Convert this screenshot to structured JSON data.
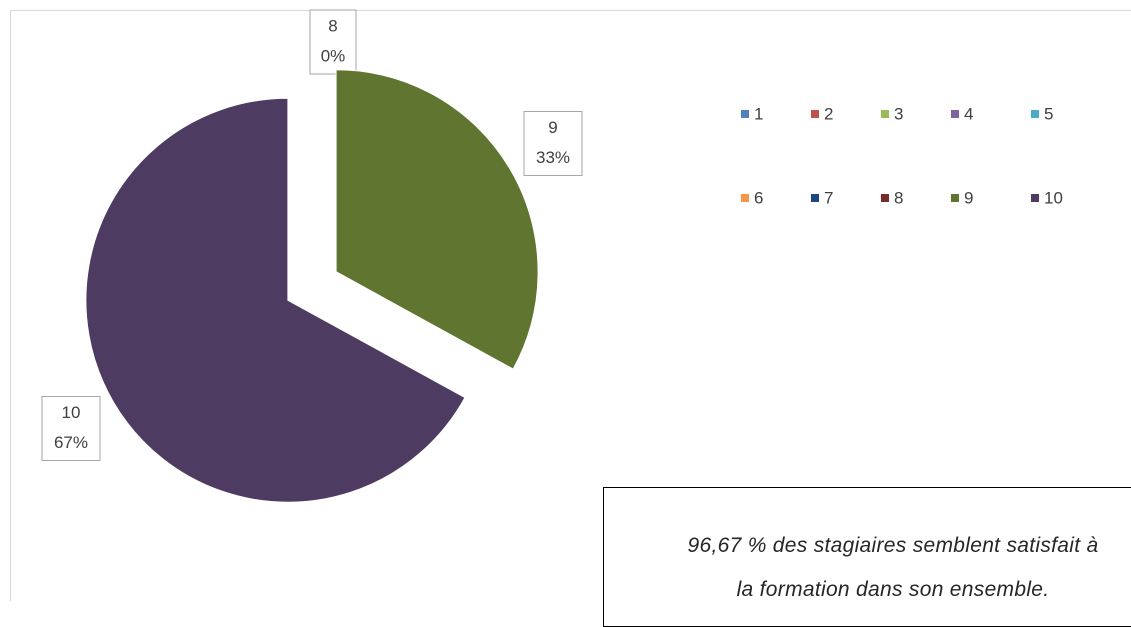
{
  "chart_data": {
    "type": "pie",
    "categories": [
      "1",
      "2",
      "3",
      "4",
      "5",
      "6",
      "7",
      "8",
      "9",
      "10"
    ],
    "values": [
      0,
      0,
      0,
      0,
      0,
      0,
      0,
      0,
      33,
      67
    ],
    "value_labels": [
      null,
      null,
      null,
      null,
      null,
      null,
      null,
      "0%",
      "33%",
      "67%"
    ],
    "colors": [
      "#4f81bd",
      "#c0504d",
      "#9bbb59",
      "#8064a2",
      "#4bacc6",
      "#f79646",
      "#1f497d",
      "#772c2a",
      "#5f7530",
      "#4e3b62"
    ],
    "legend": "right",
    "annotation": [
      "96,67 % des stagiaires semblent satisfait à",
      "la formation dans son ensemble."
    ]
  }
}
